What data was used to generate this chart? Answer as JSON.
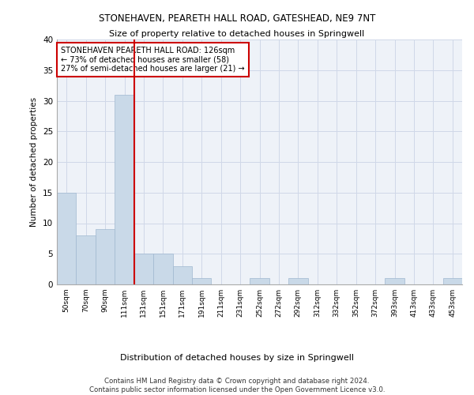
{
  "title1": "STONEHAVEN, PEARETH HALL ROAD, GATESHEAD, NE9 7NT",
  "title2": "Size of property relative to detached houses in Springwell",
  "xlabel": "Distribution of detached houses by size in Springwell",
  "ylabel": "Number of detached properties",
  "bar_values": [
    15,
    8,
    9,
    31,
    5,
    5,
    3,
    1,
    0,
    0,
    1,
    0,
    1,
    0,
    0,
    0,
    0,
    1,
    0,
    0,
    1
  ],
  "bin_labels": [
    "50sqm",
    "70sqm",
    "90sqm",
    "111sqm",
    "131sqm",
    "151sqm",
    "171sqm",
    "191sqm",
    "211sqm",
    "231sqm",
    "252sqm",
    "272sqm",
    "292sqm",
    "312sqm",
    "332sqm",
    "352sqm",
    "372sqm",
    "393sqm",
    "413sqm",
    "433sqm",
    "453sqm"
  ],
  "bar_color": "#c9d9e8",
  "bar_edge_color": "#a0b8d0",
  "grid_color": "#d0d8e8",
  "vline_x": 3.5,
  "vline_color": "#cc0000",
  "annotation_text": "STONEHAVEN PEARETH HALL ROAD: 126sqm\n← 73% of detached houses are smaller (58)\n27% of semi-detached houses are larger (21) →",
  "annotation_box_color": "#ffffff",
  "annotation_box_edge": "#cc0000",
  "ylim": [
    0,
    40
  ],
  "yticks": [
    0,
    5,
    10,
    15,
    20,
    25,
    30,
    35,
    40
  ],
  "footer_text": "Contains HM Land Registry data © Crown copyright and database right 2024.\nContains public sector information licensed under the Open Government Licence v3.0.",
  "background_color": "#eef2f8",
  "fig_background": "#ffffff"
}
